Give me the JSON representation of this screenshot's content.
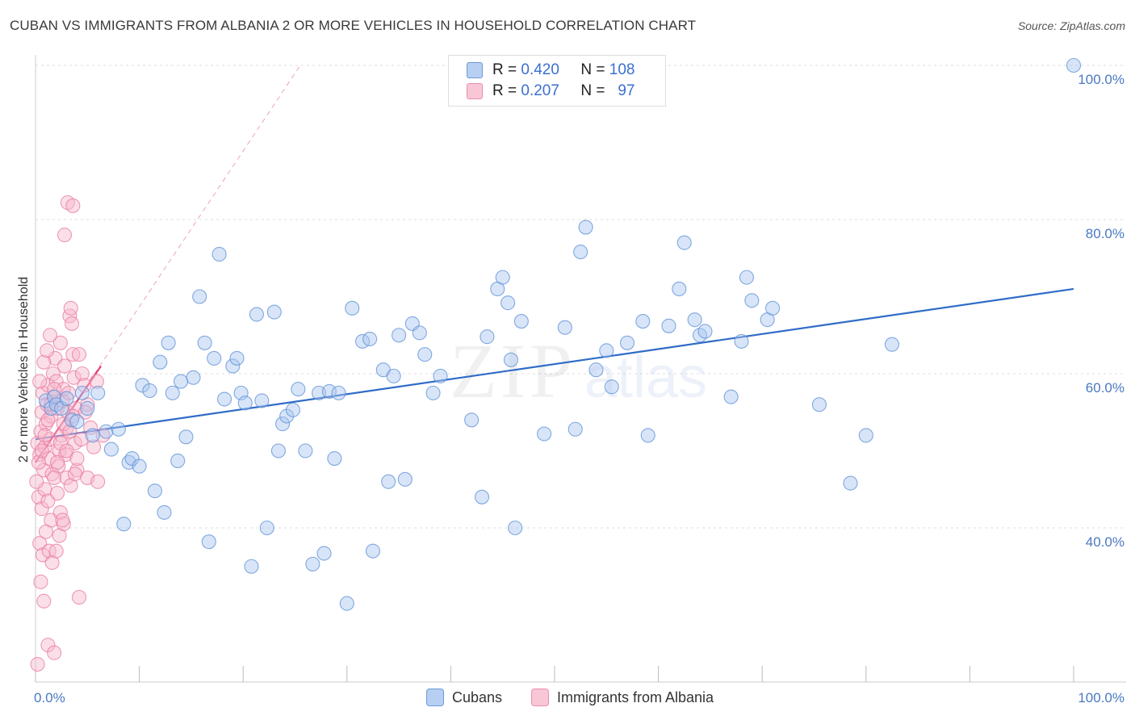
{
  "title": "CUBAN VS IMMIGRANTS FROM ALBANIA 2 OR MORE VEHICLES IN HOUSEHOLD CORRELATION CHART",
  "source": "Source: ZipAtlas.com",
  "watermark": {
    "zip": "ZIP",
    "atlas": "atlas"
  },
  "legend": {
    "rows": [
      {
        "r_label": "R =",
        "r_value": "0.420",
        "n_label": "N =",
        "n_value": "108"
      },
      {
        "r_label": "R =",
        "r_value": "0.207",
        "n_label": "N =",
        "n_value": "97"
      }
    ]
  },
  "colors": {
    "cubans_fill": "#a9c6f0",
    "cubans_stroke": "#5b8fd6",
    "cubans_line": "#2f6cc8",
    "albania_fill": "#f6b8cc",
    "albania_stroke": "#e87aa0",
    "albania_line": "#e0457a",
    "grid": "#dddddd",
    "tick_text": "#4a78c2"
  },
  "chart_data": {
    "type": "scatter",
    "title": "CUBAN VS IMMIGRANTS FROM ALBANIA 2 OR MORE VEHICLES IN HOUSEHOLD CORRELATION CHART",
    "xlabel": "",
    "ylabel": "2 or more Vehicles in Household",
    "xlim": [
      0,
      105
    ],
    "ylim": [
      22,
      103
    ],
    "x_ticks": [
      0,
      10,
      20,
      30,
      40,
      50,
      60,
      70,
      80,
      90,
      100
    ],
    "x_tick_labels": [
      "0.0%",
      "100.0%"
    ],
    "y_ticks": [
      40,
      60,
      80,
      100
    ],
    "y_tick_labels": [
      "40.0%",
      "60.0%",
      "80.0%",
      "100.0%"
    ],
    "grid": true,
    "legend_position": "top-center",
    "series": [
      {
        "name": "Cubans",
        "r": 0.42,
        "n": 108,
        "trend": {
          "x0": 0,
          "y0": 51.5,
          "x1": 100,
          "y1": 71.0
        },
        "points": [
          [
            1.0,
            56.5
          ],
          [
            1.5,
            55.5
          ],
          [
            1.8,
            57.0
          ],
          [
            2.0,
            56.0
          ],
          [
            2.5,
            55.5
          ],
          [
            3.0,
            56.8
          ],
          [
            3.5,
            54.0
          ],
          [
            4.0,
            53.8
          ],
          [
            4.5,
            57.5
          ],
          [
            5.0,
            55.5
          ],
          [
            5.5,
            52.0
          ],
          [
            6.0,
            57.5
          ],
          [
            6.8,
            52.5
          ],
          [
            7.3,
            50.2
          ],
          [
            8.0,
            52.8
          ],
          [
            8.5,
            40.5
          ],
          [
            9.0,
            48.5
          ],
          [
            9.3,
            49.0
          ],
          [
            10.0,
            48.0
          ],
          [
            10.3,
            58.5
          ],
          [
            11.0,
            57.8
          ],
          [
            11.5,
            44.8
          ],
          [
            12.0,
            61.5
          ],
          [
            12.4,
            42.0
          ],
          [
            12.8,
            64.0
          ],
          [
            13.2,
            57.5
          ],
          [
            13.7,
            48.7
          ],
          [
            14.0,
            59.0
          ],
          [
            14.5,
            51.8
          ],
          [
            15.2,
            59.5
          ],
          [
            15.8,
            70.0
          ],
          [
            16.3,
            64.0
          ],
          [
            16.7,
            38.2
          ],
          [
            17.2,
            62.0
          ],
          [
            17.7,
            75.5
          ],
          [
            18.2,
            56.7
          ],
          [
            19.0,
            61.0
          ],
          [
            19.4,
            62.0
          ],
          [
            19.8,
            57.5
          ],
          [
            20.2,
            56.2
          ],
          [
            20.8,
            35.0
          ],
          [
            21.3,
            67.7
          ],
          [
            21.8,
            56.5
          ],
          [
            22.3,
            40.0
          ],
          [
            23.0,
            68.0
          ],
          [
            23.4,
            50.0
          ],
          [
            23.8,
            53.5
          ],
          [
            24.2,
            54.5
          ],
          [
            24.8,
            55.3
          ],
          [
            25.3,
            58.0
          ],
          [
            26.0,
            50.0
          ],
          [
            26.7,
            35.3
          ],
          [
            27.3,
            57.5
          ],
          [
            27.8,
            36.7
          ],
          [
            28.3,
            57.7
          ],
          [
            29.2,
            57.5
          ],
          [
            28.8,
            49.0
          ],
          [
            30.0,
            30.2
          ],
          [
            30.5,
            68.5
          ],
          [
            31.5,
            64.2
          ],
          [
            32.2,
            64.5
          ],
          [
            32.5,
            37.0
          ],
          [
            33.5,
            60.5
          ],
          [
            34.0,
            46.0
          ],
          [
            34.5,
            59.7
          ],
          [
            35.0,
            65.0
          ],
          [
            35.6,
            46.3
          ],
          [
            36.3,
            66.5
          ],
          [
            37.0,
            65.3
          ],
          [
            37.5,
            62.5
          ],
          [
            38.3,
            57.5
          ],
          [
            39.0,
            59.7
          ],
          [
            42.0,
            54.0
          ],
          [
            43.0,
            44.0
          ],
          [
            43.5,
            64.8
          ],
          [
            44.5,
            71.0
          ],
          [
            45.0,
            72.5
          ],
          [
            45.5,
            69.2
          ],
          [
            45.8,
            61.8
          ],
          [
            46.2,
            40.0
          ],
          [
            46.8,
            66.8
          ],
          [
            49.0,
            52.2
          ],
          [
            51.0,
            66.0
          ],
          [
            52.0,
            52.8
          ],
          [
            52.5,
            75.8
          ],
          [
            53.0,
            79.0
          ],
          [
            54.0,
            60.5
          ],
          [
            55.0,
            63.0
          ],
          [
            55.5,
            58.3
          ],
          [
            57.0,
            64.0
          ],
          [
            58.5,
            66.8
          ],
          [
            59.0,
            52.0
          ],
          [
            61.0,
            66.2
          ],
          [
            62.0,
            71.0
          ],
          [
            62.5,
            77.0
          ],
          [
            63.5,
            67.0
          ],
          [
            64.0,
            65.0
          ],
          [
            64.5,
            65.5
          ],
          [
            67.0,
            57.0
          ],
          [
            68.0,
            64.2
          ],
          [
            68.5,
            72.5
          ],
          [
            69.0,
            69.5
          ],
          [
            70.5,
            67.0
          ],
          [
            71.0,
            68.5
          ],
          [
            75.5,
            56.0
          ],
          [
            78.5,
            45.8
          ],
          [
            80.0,
            52.0
          ],
          [
            82.5,
            63.8
          ],
          [
            100.0,
            100.0
          ]
        ]
      },
      {
        "name": "Immigrants from Albania",
        "r": 0.207,
        "n": 97,
        "trend": {
          "x0": 0,
          "y0": 48.5,
          "x1": 6.3,
          "y1": 61.0
        },
        "trend_extended": {
          "x0": 0,
          "y0": 48.5,
          "x1": 25.5,
          "y1": 100
        },
        "points": [
          [
            0.2,
            51.0
          ],
          [
            0.4,
            49.5
          ],
          [
            0.5,
            52.5
          ],
          [
            0.6,
            55.0
          ],
          [
            0.7,
            57.5
          ],
          [
            0.8,
            47.5
          ],
          [
            0.9,
            50.5
          ],
          [
            1.0,
            53.5
          ],
          [
            1.1,
            56.0
          ],
          [
            1.2,
            58.5
          ],
          [
            1.3,
            49.0
          ],
          [
            1.4,
            51.5
          ],
          [
            1.5,
            54.5
          ],
          [
            1.6,
            47.0
          ],
          [
            1.7,
            60.0
          ],
          [
            1.8,
            57.0
          ],
          [
            1.9,
            62.0
          ],
          [
            2.0,
            59.0
          ],
          [
            2.1,
            55.5
          ],
          [
            2.2,
            48.0
          ],
          [
            2.3,
            50.0
          ],
          [
            2.4,
            64.0
          ],
          [
            2.5,
            52.0
          ],
          [
            2.6,
            56.5
          ],
          [
            2.7,
            58.0
          ],
          [
            2.8,
            61.0
          ],
          [
            2.9,
            49.5
          ],
          [
            3.0,
            53.0
          ],
          [
            3.1,
            55.0
          ],
          [
            3.2,
            57.5
          ],
          [
            3.3,
            67.5
          ],
          [
            3.4,
            68.5
          ],
          [
            3.5,
            66.5
          ],
          [
            3.6,
            62.5
          ],
          [
            3.7,
            59.5
          ],
          [
            3.8,
            51.0
          ],
          [
            3.9,
            55.5
          ],
          [
            4.0,
            47.5
          ],
          [
            4.2,
            62.5
          ],
          [
            4.5,
            60.0
          ],
          [
            4.7,
            58.5
          ],
          [
            5.0,
            56.0
          ],
          [
            5.3,
            53.0
          ],
          [
            5.6,
            50.5
          ],
          [
            5.9,
            59.0
          ],
          [
            3.1,
            82.2
          ],
          [
            3.6,
            81.8
          ],
          [
            2.8,
            78.0
          ],
          [
            0.3,
            44.0
          ],
          [
            0.6,
            42.5
          ],
          [
            0.9,
            45.0
          ],
          [
            1.2,
            43.5
          ],
          [
            1.5,
            41.0
          ],
          [
            1.8,
            46.5
          ],
          [
            2.1,
            44.5
          ],
          [
            2.4,
            42.0
          ],
          [
            2.7,
            40.5
          ],
          [
            3.0,
            46.5
          ],
          [
            3.4,
            45.5
          ],
          [
            3.8,
            47.0
          ],
          [
            4.2,
            31.0
          ],
          [
            5.0,
            46.5
          ],
          [
            6.0,
            46.0
          ],
          [
            6.5,
            52.0
          ],
          [
            0.4,
            38.0
          ],
          [
            0.7,
            36.5
          ],
          [
            1.0,
            39.5
          ],
          [
            1.3,
            37.0
          ],
          [
            1.6,
            35.5
          ],
          [
            2.0,
            37.0
          ],
          [
            2.3,
            39.0
          ],
          [
            2.6,
            41.0
          ],
          [
            0.5,
            33.0
          ],
          [
            0.8,
            30.5
          ],
          [
            1.2,
            24.8
          ],
          [
            1.8,
            23.8
          ],
          [
            0.2,
            22.3
          ],
          [
            0.3,
            48.5
          ],
          [
            0.6,
            50.0
          ],
          [
            0.9,
            52.0
          ],
          [
            1.2,
            54.0
          ],
          [
            1.5,
            56.0
          ],
          [
            1.8,
            58.0
          ],
          [
            2.1,
            48.5
          ],
          [
            2.4,
            51.0
          ],
          [
            2.7,
            53.5
          ],
          [
            3.0,
            50.0
          ],
          [
            3.3,
            52.5
          ],
          [
            3.6,
            54.5
          ],
          [
            4.0,
            49.0
          ],
          [
            4.4,
            51.5
          ],
          [
            4.8,
            55.0
          ],
          [
            0.1,
            46.0
          ],
          [
            0.4,
            59.0
          ],
          [
            0.8,
            61.5
          ],
          [
            1.1,
            63.0
          ],
          [
            1.4,
            65.0
          ]
        ]
      }
    ]
  },
  "bottom_legend": [
    "Cubans",
    "Immigrants from Albania"
  ]
}
